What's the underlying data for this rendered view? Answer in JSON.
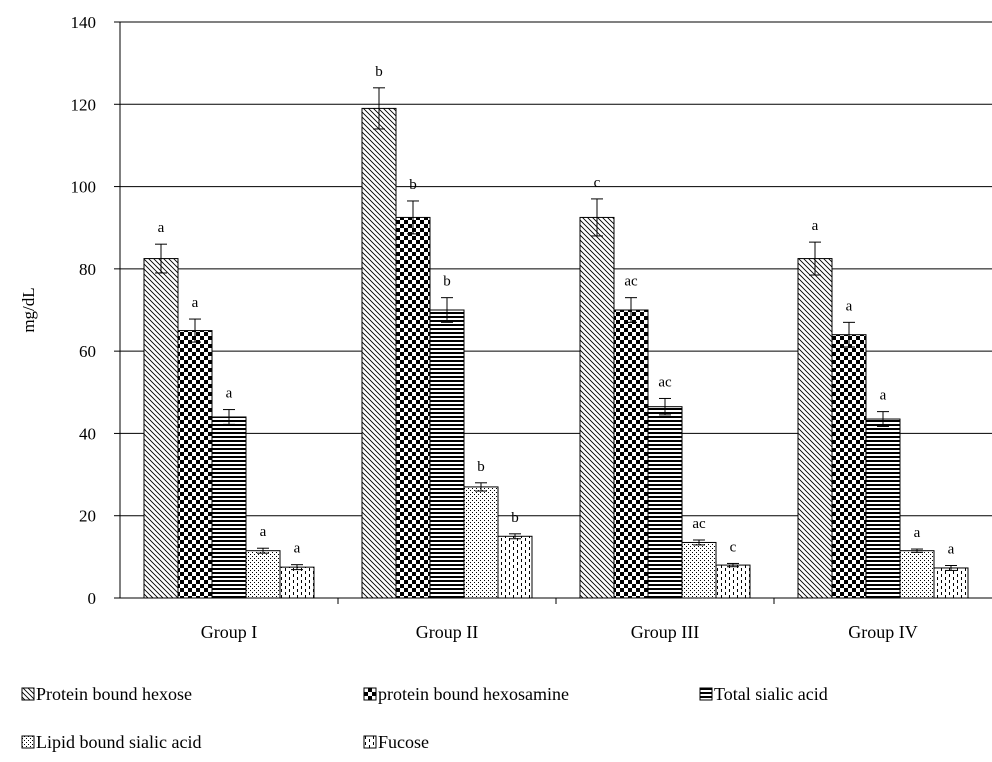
{
  "chart_data": {
    "type": "bar",
    "title": "",
    "xlabel": "",
    "ylabel": "mg/dL",
    "ylim": [
      0,
      140
    ],
    "yticks": [
      0,
      20,
      40,
      60,
      80,
      100,
      120,
      140
    ],
    "grid": true,
    "legend_position": "bottom",
    "categories": [
      "Group I",
      "Group II",
      "Group III",
      "Group IV"
    ],
    "series": [
      {
        "name": "Protein bound hexose",
        "pattern": "diagonal-hatch",
        "values": [
          82.5,
          119,
          92.5,
          82.5
        ],
        "errors": [
          3.5,
          5,
          4.5,
          4
        ],
        "labels": [
          "a",
          "b",
          "c",
          "a"
        ]
      },
      {
        "name": "protein bound hexosamine",
        "pattern": "checkerboard",
        "values": [
          65,
          92.5,
          70,
          64
        ],
        "errors": [
          2.8,
          4,
          3,
          3
        ],
        "labels": [
          "a",
          "b",
          "ac",
          "a"
        ]
      },
      {
        "name": "Total sialic acid",
        "pattern": "horizontal-lines",
        "values": [
          44,
          70,
          46.5,
          43.5
        ],
        "errors": [
          1.8,
          3,
          2,
          1.8
        ],
        "labels": [
          "a",
          "b",
          "ac",
          "a"
        ]
      },
      {
        "name": "Lipid bound sialic acid",
        "pattern": "dots",
        "values": [
          11.5,
          27,
          13.5,
          11.5
        ],
        "errors": [
          0.6,
          1,
          0.6,
          0.4
        ],
        "labels": [
          "a",
          "b",
          "ac",
          "a"
        ]
      },
      {
        "name": "Fucose",
        "pattern": "dashes",
        "values": [
          7.5,
          15,
          8,
          7.3
        ],
        "errors": [
          0.6,
          0.6,
          0.4,
          0.6
        ],
        "labels": [
          "a",
          "b",
          "c",
          "a"
        ]
      }
    ]
  }
}
